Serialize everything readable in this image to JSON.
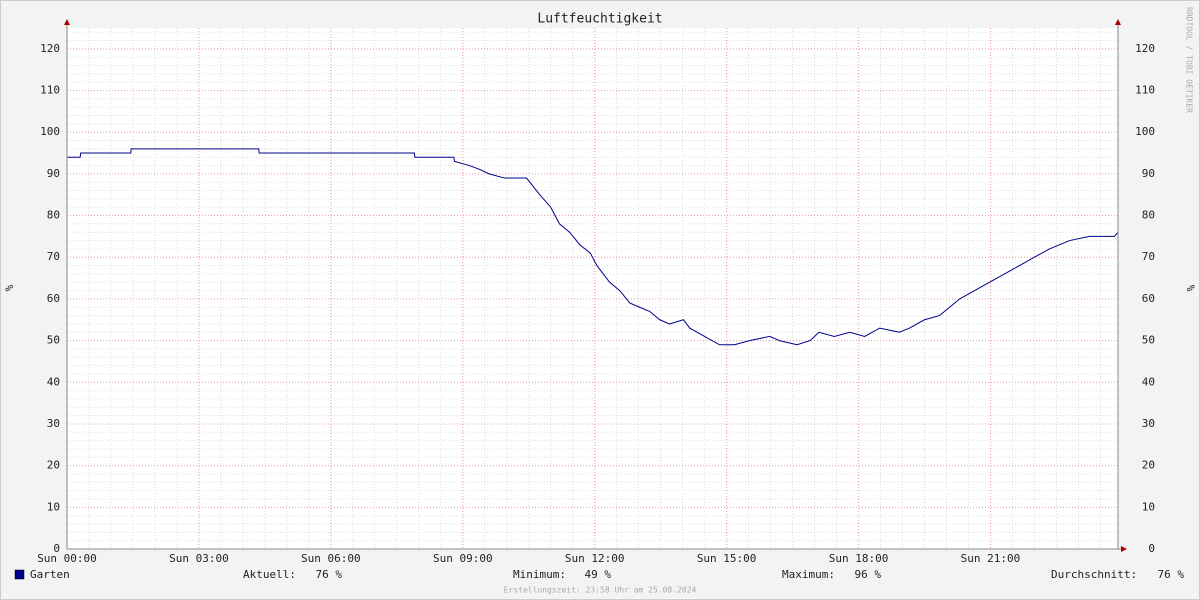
{
  "chart_data": {
    "type": "line",
    "title": "Luftfeuchtigkeit",
    "y_label": "%",
    "watermark": "RRDTOOL / TOBI OETIKER",
    "footer": "Erstellungszeit: 23:58 Uhr am 25.08.2024",
    "x": [
      0,
      0.3,
      0.31,
      1.45,
      1.46,
      4.36,
      4.37,
      7.9,
      7.91,
      8.8,
      8.81,
      9.15,
      9.4,
      9.6,
      9.95,
      10.45,
      10.75,
      11.0,
      11.2,
      11.43,
      11.66,
      11.9,
      12.05,
      12.34,
      12.57,
      12.8,
      13.02,
      13.25,
      13.48,
      13.7,
      14.02,
      14.16,
      14.5,
      14.84,
      15.18,
      15.52,
      15.98,
      16.2,
      16.6,
      16.9,
      17.1,
      17.45,
      17.8,
      18.14,
      18.48,
      18.93,
      19.16,
      19.5,
      19.84,
      20.07,
      20.3,
      20.64,
      20.98,
      21.32,
      21.66,
      22.0,
      22.34,
      22.8,
      23.25,
      23.82,
      23.9
    ],
    "series": [
      {
        "name": "Garten",
        "color": "#00008b",
        "values": [
          94,
          94,
          95,
          95,
          96,
          96,
          95,
          95,
          94,
          94,
          93,
          92,
          91,
          90,
          89,
          89,
          85,
          82,
          78,
          76,
          73,
          71,
          68,
          64,
          62,
          59,
          58,
          57,
          55,
          54,
          55,
          53,
          51,
          49,
          49,
          50,
          51,
          50,
          49,
          50,
          52,
          51,
          52,
          51,
          53,
          52,
          53,
          55,
          56,
          58,
          60,
          62,
          64,
          66,
          68,
          70,
          72,
          74,
          75,
          75,
          76
        ]
      }
    ],
    "stats": [
      {
        "name": "Aktuell:",
        "value": 76,
        "label": "76 %"
      },
      {
        "name": "Minimum:",
        "value": 49,
        "label": "49 %"
      },
      {
        "name": "Maximum:",
        "value": 96,
        "label": "96 %"
      },
      {
        "name": "Durchschnitt:",
        "value": 76,
        "label": "76 %"
      }
    ],
    "xlim": [
      0,
      23.9
    ],
    "xticks": [
      {
        "value": 0,
        "label": "Sun 00:00"
      },
      {
        "value": 3,
        "label": "Sun 03:00"
      },
      {
        "value": 6,
        "label": "Sun 06:00"
      },
      {
        "value": 9,
        "label": "Sun 09:00"
      },
      {
        "value": 12,
        "label": "Sun 12:00"
      },
      {
        "value": 15,
        "label": "Sun 15:00"
      },
      {
        "value": 18,
        "label": "Sun 18:00"
      },
      {
        "value": 21,
        "label": "Sun 21:00"
      }
    ],
    "ylim": [
      0,
      125
    ],
    "yticks": [
      0,
      10,
      20,
      30,
      40,
      50,
      60,
      70,
      80,
      90,
      100,
      110,
      120
    ],
    "x_minor_step": 0.5,
    "y_minor_step": 2,
    "grid": true
  }
}
